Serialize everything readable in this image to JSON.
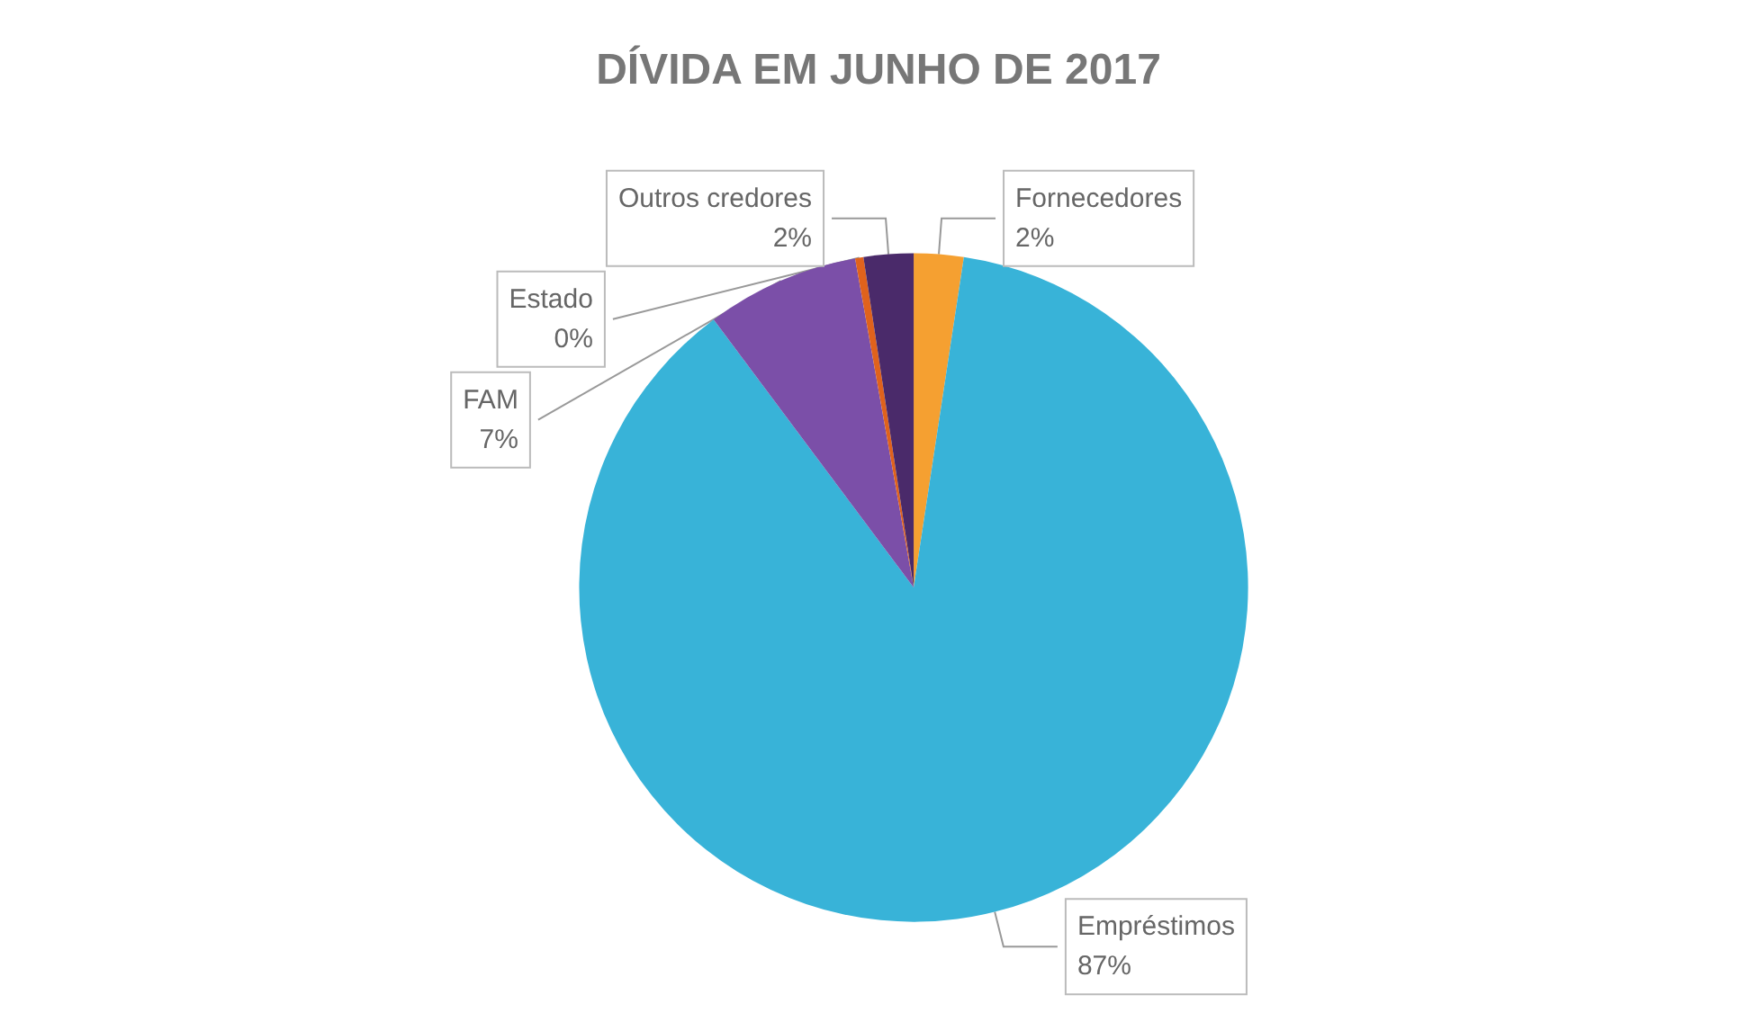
{
  "chart_data": {
    "type": "pie",
    "title": "DÍVIDA EM JUNHO DE 2017",
    "categories": [
      "Fornecedores",
      "Empréstimos",
      "FAM",
      "Estado",
      "Outros credores"
    ],
    "values": [
      2.4,
      87.4,
      7.4,
      0.4,
      2.4
    ],
    "value_labels": [
      "2%",
      "87%",
      "7%",
      "0%",
      "2%"
    ],
    "colors": [
      "#f5a031",
      "#38b3d8",
      "#7b4fa8",
      "#e0621c",
      "#4a2a6a"
    ],
    "legend": false
  }
}
